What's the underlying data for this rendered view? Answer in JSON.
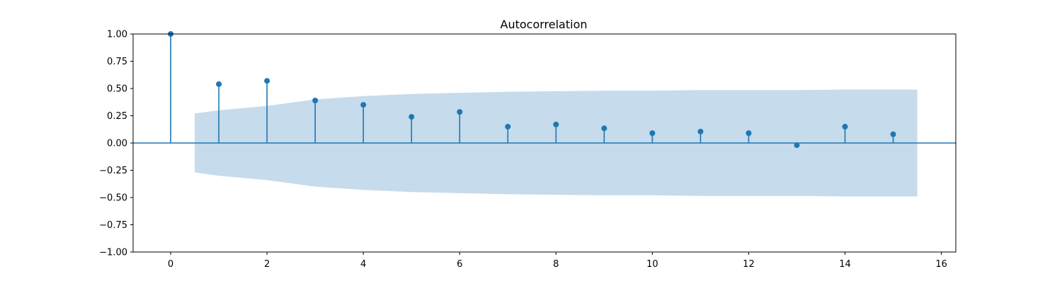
{
  "chart_data": {
    "type": "stem",
    "title": "Autocorrelation",
    "xlabel": "",
    "ylabel": "",
    "xlim": [
      -0.78,
      16.3
    ],
    "ylim": [
      -1.0,
      1.0
    ],
    "xticks": [
      0,
      2,
      4,
      6,
      8,
      10,
      12,
      14,
      16
    ],
    "yticks": [
      -1.0,
      -0.75,
      -0.5,
      -0.25,
      0.0,
      0.25,
      0.5,
      0.75,
      1.0
    ],
    "ytick_labels": [
      "−1.00",
      "−0.75",
      "−0.50",
      "−0.25",
      "0.00",
      "0.25",
      "0.50",
      "0.75",
      "1.00"
    ],
    "grid": false,
    "lags": [
      0,
      1,
      2,
      3,
      4,
      5,
      6,
      7,
      8,
      9,
      10,
      11,
      12,
      13,
      14,
      15
    ],
    "values": [
      1.0,
      0.54,
      0.57,
      0.39,
      0.35,
      0.24,
      0.285,
      0.15,
      0.17,
      0.135,
      0.09,
      0.105,
      0.09,
      -0.02,
      0.15,
      0.08
    ],
    "confidence_band": {
      "x": [
        0.5,
        1,
        2,
        3,
        4,
        5,
        6,
        7,
        8,
        9,
        10,
        11,
        12,
        13,
        14,
        15,
        15.5
      ],
      "upper": [
        0.27,
        0.3,
        0.34,
        0.4,
        0.43,
        0.45,
        0.46,
        0.47,
        0.475,
        0.48,
        0.48,
        0.485,
        0.485,
        0.485,
        0.49,
        0.49,
        0.49
      ],
      "lower": [
        -0.27,
        -0.3,
        -0.34,
        -0.4,
        -0.43,
        -0.45,
        -0.46,
        -0.47,
        -0.475,
        -0.48,
        -0.48,
        -0.485,
        -0.485,
        -0.485,
        -0.49,
        -0.49,
        -0.49
      ]
    },
    "colors": {
      "stem": "#1f77b4",
      "band": "#c6dbeb",
      "zero_line": "#1f77b4",
      "axes": "#000000"
    }
  }
}
